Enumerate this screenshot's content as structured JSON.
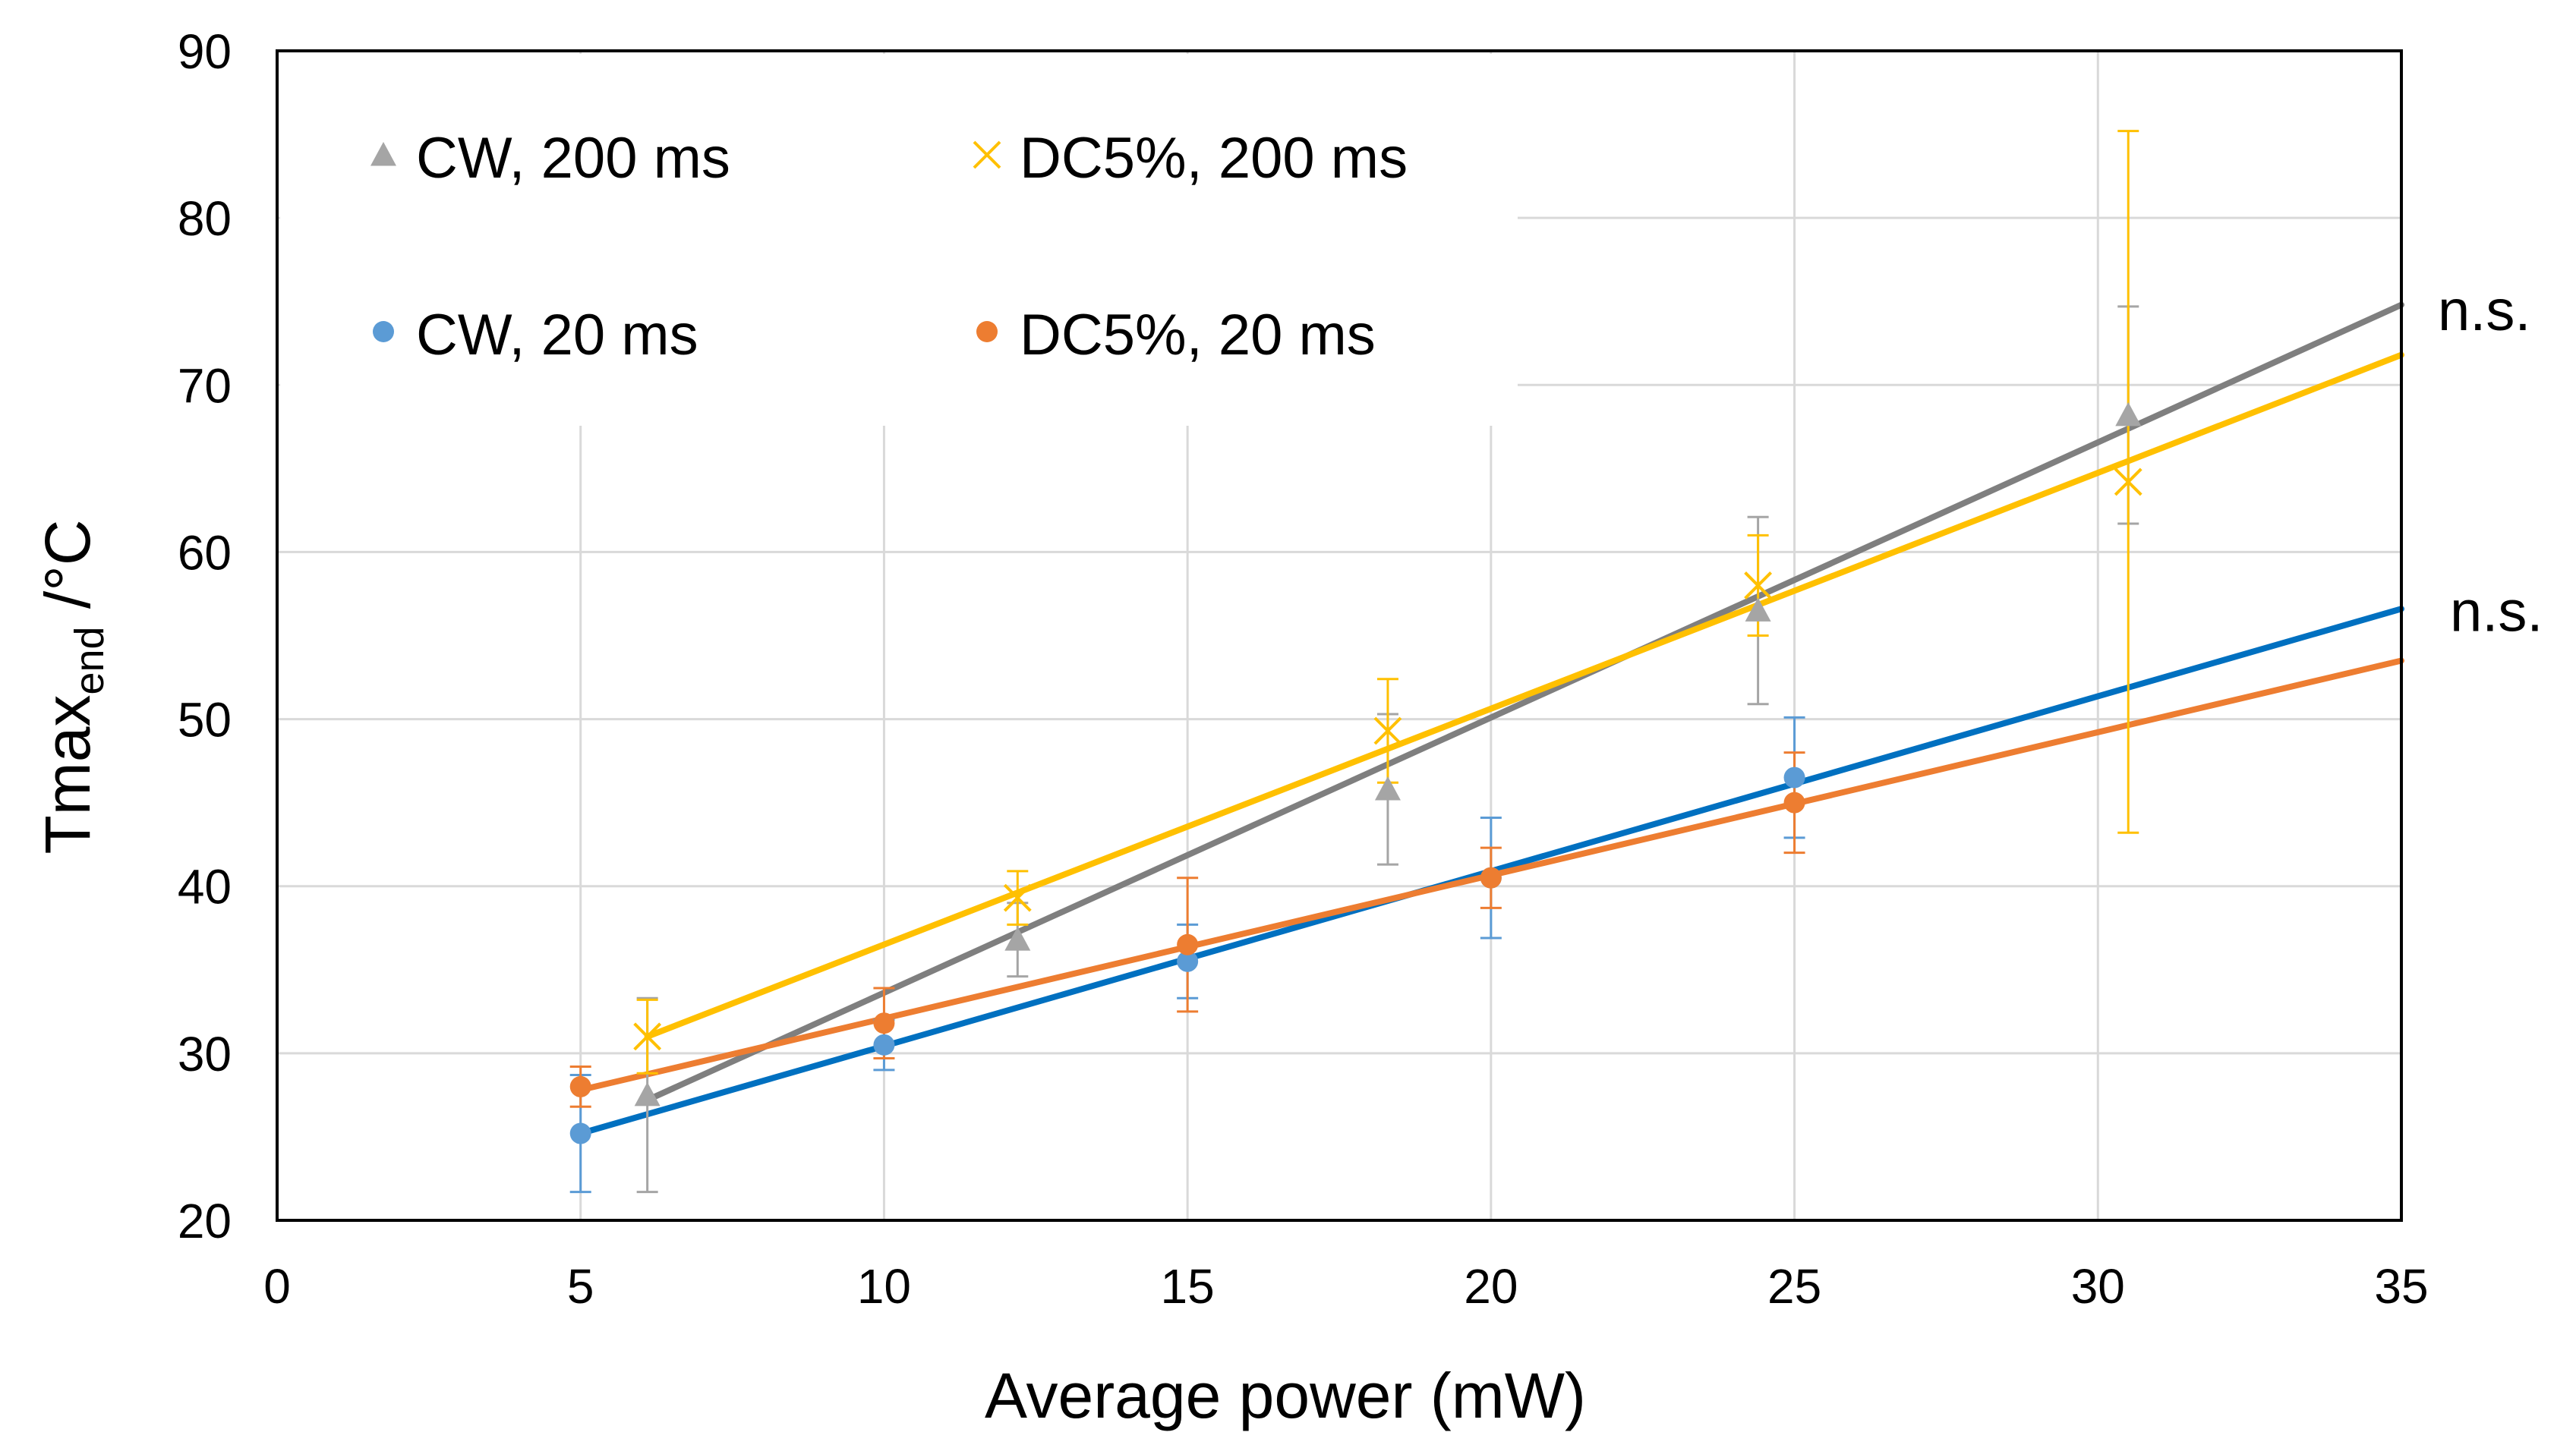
{
  "chart_data": {
    "type": "scatter",
    "title": "",
    "xlabel": "Average power (mW)",
    "ylabel": {
      "main": "Tmax",
      "subscript": "end",
      "unit": " /°C"
    },
    "xlim": [
      0,
      35
    ],
    "ylim": [
      20,
      90
    ],
    "xticks": [
      0,
      5,
      10,
      15,
      20,
      25,
      30,
      35
    ],
    "yticks": [
      20,
      30,
      40,
      50,
      60,
      70,
      80,
      90
    ],
    "grid": true,
    "legend_position": "top-left",
    "annotations": [
      {
        "text": "n.s.",
        "x": 35.6,
        "y": 74.5
      },
      {
        "text": "n.s.",
        "x": 35.8,
        "y": 56.5
      }
    ],
    "series": [
      {
        "name": "CW, 200 ms",
        "color": "#a5a5a5",
        "line_color": "#7f7f7f",
        "marker": "triangle",
        "x": [
          6.1,
          12.2,
          18.3,
          24.4,
          30.5
        ],
        "y": [
          27.5,
          36.8,
          45.8,
          56.5,
          68.2
        ],
        "err": [
          5.8,
          2.2,
          4.5,
          5.6,
          6.5
        ],
        "trend": {
          "x": [
            6.1,
            35
          ],
          "y": [
            27.2,
            74.8
          ]
        }
      },
      {
        "name": "DC5%, 200 ms",
        "color": "#ffc000",
        "line_color": "#ffc000",
        "marker": "x",
        "x": [
          6.1,
          12.2,
          18.3,
          24.4,
          30.5
        ],
        "y": [
          31.0,
          39.3,
          49.3,
          58.0,
          64.2
        ],
        "err": [
          2.2,
          1.6,
          3.1,
          3.0,
          21.0
        ],
        "trend": {
          "x": [
            6.1,
            35
          ],
          "y": [
            31.0,
            71.8
          ]
        }
      },
      {
        "name": "CW, 20 ms",
        "color": "#5b9bd5",
        "line_color": "#0070c0",
        "marker": "circle",
        "x": [
          5,
          10,
          15,
          20,
          25
        ],
        "y": [
          25.2,
          30.5,
          35.5,
          40.5,
          46.5
        ],
        "err": [
          3.5,
          1.5,
          2.2,
          3.6,
          3.6
        ],
        "trend": {
          "x": [
            5,
            35
          ],
          "y": [
            25.2,
            56.6
          ]
        }
      },
      {
        "name": "DC5%, 20 ms",
        "color": "#ed7d31",
        "line_color": "#ed7d31",
        "marker": "circle",
        "x": [
          5,
          10,
          15,
          20,
          25
        ],
        "y": [
          28.0,
          31.8,
          36.5,
          40.5,
          45.0
        ],
        "err": [
          1.2,
          2.1,
          4.0,
          1.8,
          3.0
        ],
        "trend": {
          "x": [
            5,
            35
          ],
          "y": [
            27.8,
            53.5
          ]
        }
      }
    ]
  }
}
